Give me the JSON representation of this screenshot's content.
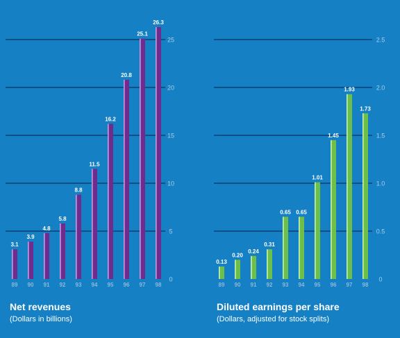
{
  "colors": {
    "background": "#1580c4",
    "gridline": "#0b3360",
    "tick_label": "#a9cde8",
    "category_label": "#8fb7db",
    "value_label": "#ffffff",
    "revenue_bar": "#6f2c8f",
    "revenue_bar_highlight": "#c89ae0",
    "eps_bar": "#6cc04a",
    "eps_bar_highlight": "#c9f0b0"
  },
  "chart_data": [
    {
      "type": "bar",
      "title": "Net revenues",
      "subtitle": "(Dollars in billions)",
      "categories": [
        "89",
        "90",
        "91",
        "92",
        "93",
        "94",
        "95",
        "96",
        "97",
        "98"
      ],
      "values": [
        3.1,
        3.9,
        4.8,
        5.8,
        8.8,
        11.5,
        16.2,
        20.8,
        25.1,
        26.3
      ],
      "value_labels": [
        "3.1",
        "3.9",
        "4.8",
        "5.8",
        "8.8",
        "11.5",
        "16.2",
        "20.8",
        "25.1",
        "26.3"
      ],
      "yticks": [
        "0",
        "5",
        "10",
        "15",
        "20",
        "25"
      ],
      "ylim": [
        0,
        27
      ],
      "grid": true
    },
    {
      "type": "bar",
      "title": "Diluted earnings per share",
      "subtitle": "(Dollars, adjusted for stock splits)",
      "categories": [
        "89",
        "90",
        "91",
        "92",
        "93",
        "94",
        "95",
        "96",
        "97",
        "98"
      ],
      "values": [
        0.13,
        0.2,
        0.24,
        0.31,
        0.65,
        0.65,
        1.01,
        1.45,
        1.93,
        1.73
      ],
      "value_labels": [
        "0.13",
        "0.20",
        "0.24",
        "0.31",
        "0.65",
        "0.65",
        "1.01",
        "1.45",
        "1.93",
        "1.73"
      ],
      "yticks": [
        "0",
        "0.5",
        "1.0",
        "1.5",
        "2.0",
        "2.5"
      ],
      "ylim": [
        0,
        2.7
      ],
      "grid": true
    }
  ]
}
